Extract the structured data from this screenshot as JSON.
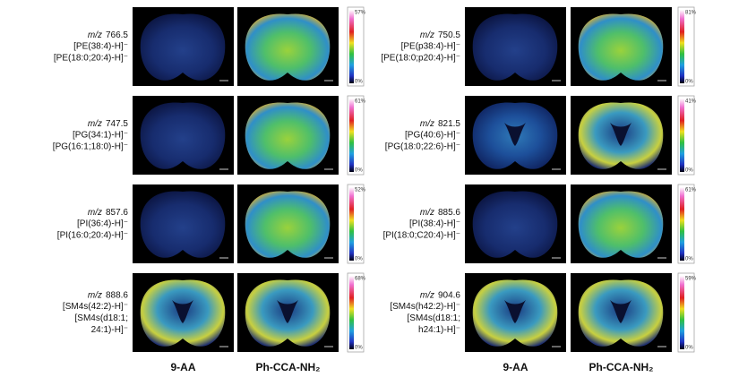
{
  "mz_label": "m/z",
  "columns": [
    "9-AA",
    "Ph-CCA-NH₂"
  ],
  "panels": [
    {
      "mz": "766.5",
      "lines": [
        "[PE(38:4)-H]⁻",
        "[PE(18:0;20:4)-H]⁻"
      ],
      "scale_max": "57%",
      "scale_min": "0%"
    },
    {
      "mz": "747.5",
      "lines": [
        "[PG(34:1)-H]⁻",
        "[PG(16:1;18:0)-H]⁻"
      ],
      "scale_max": "61%",
      "scale_min": "0%"
    },
    {
      "mz": "857.6",
      "lines": [
        "[PI(36:4)-H]⁻",
        "[PI(16:0;20:4)-H]⁻"
      ],
      "scale_max": "52%",
      "scale_min": "0%"
    },
    {
      "mz": "888.6",
      "lines": [
        "[SM4s(42:2)-H]⁻",
        "[SM4s(d18:1;",
        "24:1)-H]⁻"
      ],
      "scale_max": "68%",
      "scale_min": "0%"
    },
    {
      "mz": "750.5",
      "lines": [
        "[PE(p38:4)-H]⁻",
        "[PE(18:0;p20:4)-H]⁻"
      ],
      "scale_max": "81%",
      "scale_min": "0%"
    },
    {
      "mz": "821.5",
      "lines": [
        "[PG(40:6)-H]⁻",
        "[PG(18:0;22:6)-H]⁻"
      ],
      "scale_max": "41%",
      "scale_min": "0%"
    },
    {
      "mz": "885.6",
      "lines": [
        "[PI(38:4)-H]⁻",
        "[PI(18:0;C20:4)-H]⁻"
      ],
      "scale_max": "61%",
      "scale_min": "0%"
    },
    {
      "mz": "904.6",
      "lines": [
        "[SM4s(h42:2)-H]⁻",
        "[SM4s(d18:1;",
        "h24:1)-H]⁻"
      ],
      "scale_max": "59%",
      "scale_min": "0%"
    }
  ]
}
